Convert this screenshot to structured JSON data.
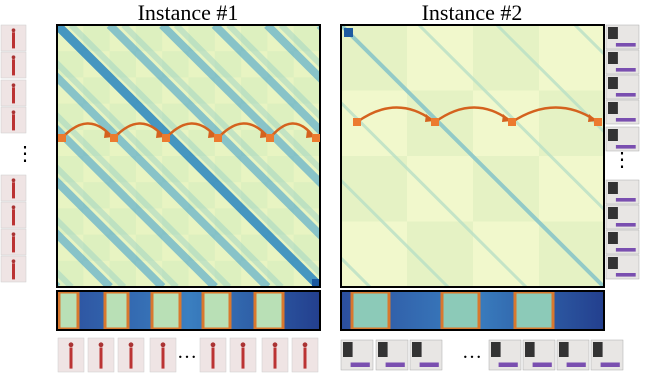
{
  "figure": {
    "panels": [
      {
        "title": "Instance #1"
      },
      {
        "title": "Instance #2"
      }
    ],
    "ellipses": {
      "left": "⋮",
      "right": "⋮",
      "bottom_left": "…",
      "bottom_right": "…"
    }
  }
}
